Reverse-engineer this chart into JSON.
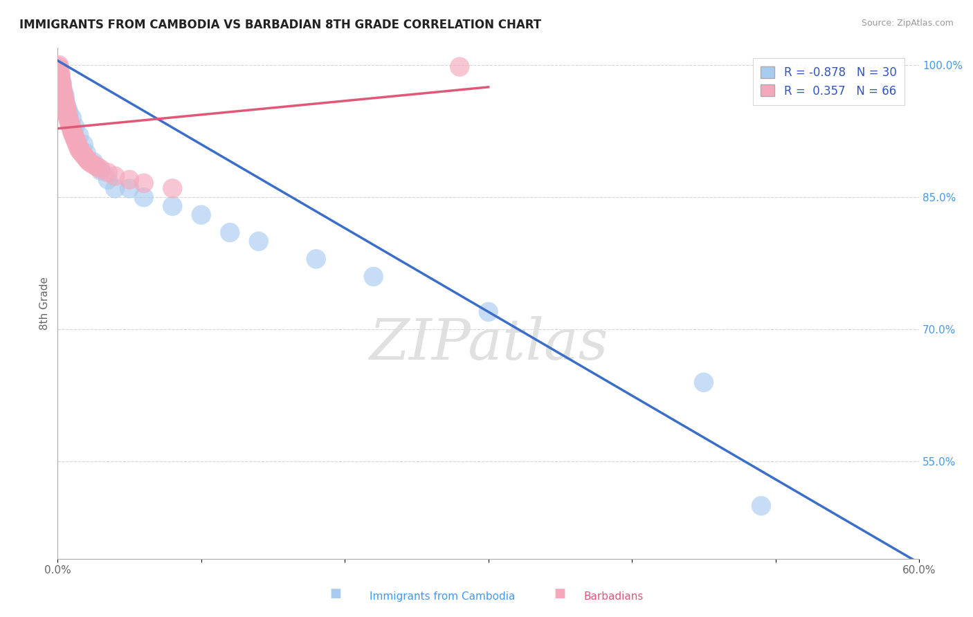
{
  "title": "IMMIGRANTS FROM CAMBODIA VS BARBADIAN 8TH GRADE CORRELATION CHART",
  "source": "Source: ZipAtlas.com",
  "xlabel_blue": "Immigrants from Cambodia",
  "xlabel_pink": "Barbadians",
  "ylabel": "8th Grade",
  "watermark": "ZIPatlas",
  "xlim": [
    0.0,
    0.6
  ],
  "ylim": [
    0.44,
    1.02
  ],
  "R_blue": -0.878,
  "N_blue": 30,
  "R_pink": 0.357,
  "N_pink": 66,
  "blue_color": "#A8CCF0",
  "pink_color": "#F5A8BC",
  "blue_line_color": "#3B6EC8",
  "pink_line_color": "#E05878",
  "background_color": "#FFFFFF",
  "grid_color": "#CCCCCC",
  "ytick_positions": [
    0.55,
    0.7,
    0.85,
    1.0
  ],
  "ytick_labels": [
    "55.0%",
    "70.0%",
    "85.0%",
    "100.0%"
  ],
  "xtick_positions": [
    0.0,
    0.1,
    0.2,
    0.3,
    0.4,
    0.5,
    0.6
  ],
  "xtick_labels": [
    "0.0%",
    "",
    "",
    "",
    "",
    "",
    "60.0%"
  ],
  "blue_scatter_x": [
    0.001,
    0.002,
    0.003,
    0.003,
    0.004,
    0.005,
    0.005,
    0.006,
    0.007,
    0.008,
    0.01,
    0.012,
    0.015,
    0.018,
    0.02,
    0.025,
    0.03,
    0.035,
    0.04,
    0.05,
    0.06,
    0.08,
    0.1,
    0.12,
    0.14,
    0.18,
    0.22,
    0.3,
    0.45,
    0.49
  ],
  "blue_scatter_y": [
    0.99,
    0.985,
    0.98,
    0.975,
    0.97,
    0.965,
    0.96,
    0.955,
    0.95,
    0.945,
    0.94,
    0.93,
    0.92,
    0.91,
    0.9,
    0.89,
    0.88,
    0.87,
    0.86,
    0.86,
    0.85,
    0.84,
    0.83,
    0.81,
    0.8,
    0.78,
    0.76,
    0.72,
    0.64,
    0.5
  ],
  "pink_scatter_x": [
    0.001,
    0.001,
    0.001,
    0.001,
    0.001,
    0.002,
    0.002,
    0.002,
    0.002,
    0.002,
    0.002,
    0.003,
    0.003,
    0.003,
    0.003,
    0.003,
    0.004,
    0.004,
    0.004,
    0.004,
    0.005,
    0.005,
    0.005,
    0.005,
    0.006,
    0.006,
    0.006,
    0.006,
    0.007,
    0.007,
    0.007,
    0.008,
    0.008,
    0.008,
    0.009,
    0.009,
    0.01,
    0.01,
    0.01,
    0.011,
    0.011,
    0.012,
    0.012,
    0.013,
    0.013,
    0.014,
    0.014,
    0.015,
    0.015,
    0.016,
    0.017,
    0.018,
    0.019,
    0.02,
    0.021,
    0.022,
    0.024,
    0.026,
    0.028,
    0.03,
    0.035,
    0.04,
    0.05,
    0.06,
    0.08,
    0.28
  ],
  "pink_scatter_y": [
    1.0,
    0.998,
    0.996,
    0.994,
    0.992,
    0.99,
    0.988,
    0.986,
    0.984,
    0.982,
    0.98,
    0.978,
    0.976,
    0.974,
    0.972,
    0.97,
    0.968,
    0.966,
    0.964,
    0.962,
    0.96,
    0.958,
    0.956,
    0.954,
    0.952,
    0.95,
    0.948,
    0.946,
    0.944,
    0.942,
    0.94,
    0.938,
    0.936,
    0.934,
    0.932,
    0.93,
    0.928,
    0.926,
    0.924,
    0.922,
    0.92,
    0.918,
    0.916,
    0.914,
    0.912,
    0.91,
    0.908,
    0.906,
    0.904,
    0.902,
    0.9,
    0.898,
    0.896,
    0.894,
    0.892,
    0.89,
    0.888,
    0.886,
    0.884,
    0.882,
    0.878,
    0.874,
    0.87,
    0.866,
    0.86,
    0.998
  ],
  "blue_line_x": [
    0.0,
    0.6
  ],
  "blue_line_y": [
    1.005,
    0.435
  ],
  "pink_line_x": [
    0.0,
    0.3
  ],
  "pink_line_y": [
    0.928,
    0.975
  ]
}
